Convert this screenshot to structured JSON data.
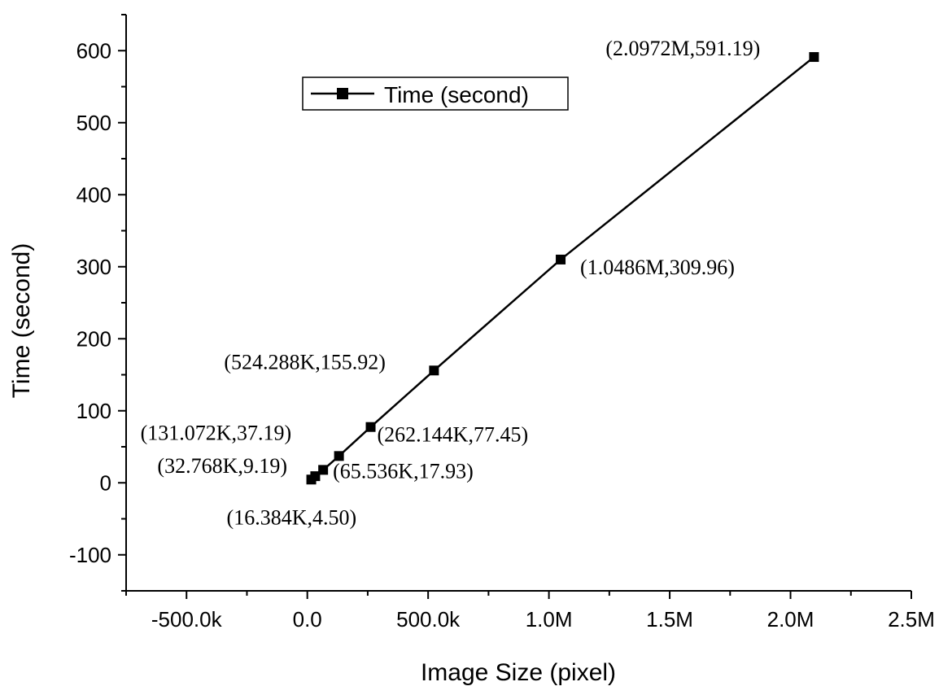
{
  "chart_data": {
    "type": "line",
    "xlabel": "Image Size (pixel)",
    "ylabel": "Time (second)",
    "xlim": [
      -750000,
      2500000
    ],
    "ylim": [
      -150,
      650
    ],
    "x_ticks": [
      {
        "value": -500000,
        "label": "-500.0k"
      },
      {
        "value": 0,
        "label": "0.0"
      },
      {
        "value": 500000,
        "label": "500.0k"
      },
      {
        "value": 1000000,
        "label": "1.0M"
      },
      {
        "value": 1500000,
        "label": "1.5M"
      },
      {
        "value": 2000000,
        "label": "2.0M"
      },
      {
        "value": 2500000,
        "label": "2.5M"
      }
    ],
    "y_ticks": [
      {
        "value": -100,
        "label": "-100"
      },
      {
        "value": 0,
        "label": "0"
      },
      {
        "value": 100,
        "label": "100"
      },
      {
        "value": 200,
        "label": "200"
      },
      {
        "value": 300,
        "label": "300"
      },
      {
        "value": 400,
        "label": "400"
      },
      {
        "value": 500,
        "label": "500"
      },
      {
        "value": 600,
        "label": "600"
      }
    ],
    "legend": {
      "position": "top-left",
      "entries": [
        "Time (second)"
      ]
    },
    "grid": false,
    "series": [
      {
        "name": "Time (second)",
        "color": "#000000",
        "marker": "square",
        "points": [
          {
            "x": 16384,
            "y": 4.5,
            "label": "(16.384K,4.50)"
          },
          {
            "x": 32768,
            "y": 9.19,
            "label": "(32.768K,9.19)"
          },
          {
            "x": 65536,
            "y": 17.93,
            "label": "(65.536K,17.93)"
          },
          {
            "x": 131072,
            "y": 37.19,
            "label": "(131.072K,37.19)"
          },
          {
            "x": 262144,
            "y": 77.45,
            "label": "(262.144K,77.45)"
          },
          {
            "x": 524288,
            "y": 155.92,
            "label": "(524.288K,155.92)"
          },
          {
            "x": 1048600,
            "y": 309.96,
            "label": "(1.0486M,309.96)"
          },
          {
            "x": 2097200,
            "y": 591.19,
            "label": "(2.0972M,591.19)"
          }
        ]
      }
    ]
  }
}
